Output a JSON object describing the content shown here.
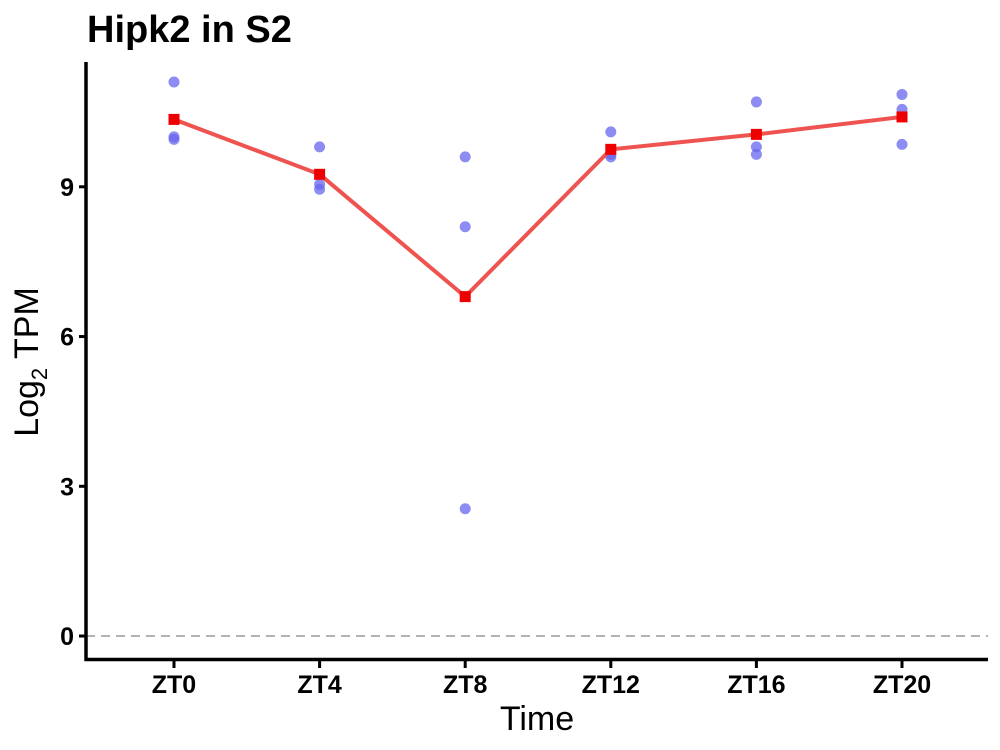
{
  "chart_data": {
    "type": "line",
    "title": "Hipk2 in S2",
    "xlabel": "Time",
    "ylabel": "Log",
    "ylabel_subscript": "2",
    "ylabel_suffix": " TPM",
    "categories": [
      "ZT0",
      "ZT4",
      "ZT8",
      "ZT12",
      "ZT16",
      "ZT20"
    ],
    "yticks": [
      "0",
      "3",
      "6",
      "9"
    ],
    "ylim": [
      -0.5,
      11.5
    ],
    "grid": false,
    "reference_line": {
      "y": 0,
      "style": "dashed",
      "color": "#b3b3b3"
    },
    "series": [
      {
        "kind": "line-with-square-markers",
        "color": "#ef5350",
        "marker_color": "#ee0000",
        "values": [
          10.35,
          9.25,
          6.8,
          9.75,
          10.05,
          10.4
        ]
      },
      {
        "kind": "replicate-points",
        "color": "#6666ee",
        "points": [
          [
            0,
            11.1
          ],
          [
            0,
            10.0
          ],
          [
            0,
            9.95
          ],
          [
            1,
            9.8
          ],
          [
            1,
            9.05
          ],
          [
            1,
            8.95
          ],
          [
            2,
            9.6
          ],
          [
            2,
            8.2
          ],
          [
            2,
            2.55
          ],
          [
            3,
            10.1
          ],
          [
            3,
            9.65
          ],
          [
            3,
            9.6
          ],
          [
            4,
            10.7
          ],
          [
            4,
            9.8
          ],
          [
            4,
            9.65
          ],
          [
            5,
            10.85
          ],
          [
            5,
            10.55
          ],
          [
            5,
            9.85
          ]
        ]
      }
    ]
  }
}
